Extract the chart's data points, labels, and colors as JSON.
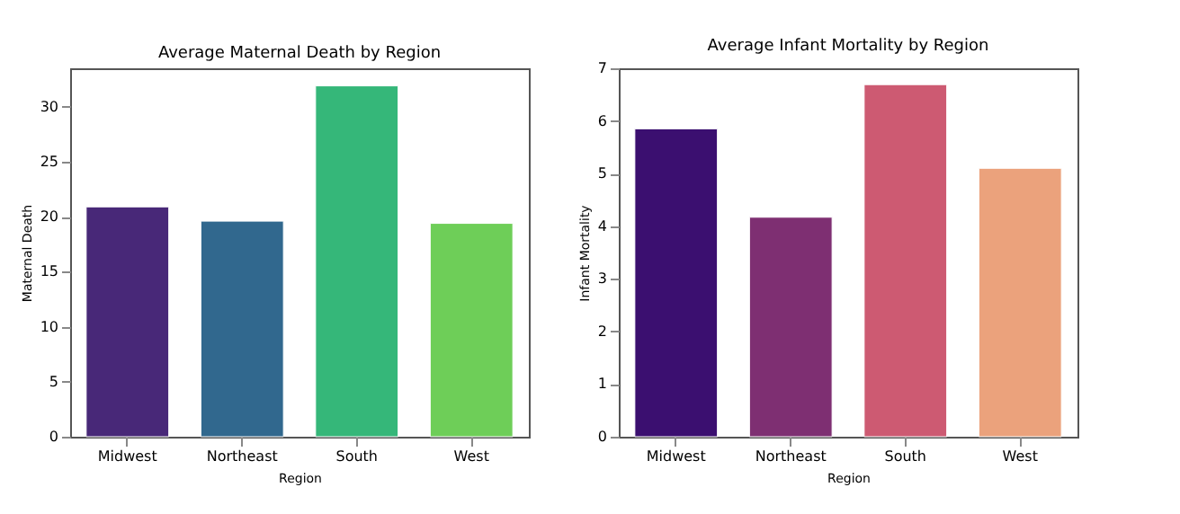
{
  "chart_data": [
    {
      "type": "bar",
      "title": "Average Maternal Death by Region",
      "xlabel": "Region",
      "ylabel": "Maternal Death",
      "categories": [
        "Midwest",
        "Northeast",
        "South",
        "West"
      ],
      "values": [
        20.9,
        19.6,
        31.9,
        19.4
      ],
      "colors": [
        "#482878",
        "#31688e",
        "#35b779",
        "#6ece58"
      ],
      "ylim": [
        0,
        33.5
      ],
      "yticks": [
        0,
        5,
        10,
        15,
        20,
        25,
        30
      ],
      "grid": false
    },
    {
      "type": "bar",
      "title": "Average Infant Mortality by Region",
      "xlabel": "Region",
      "ylabel": "Infant Mortality",
      "categories": [
        "Midwest",
        "Northeast",
        "South",
        "West"
      ],
      "values": [
        5.85,
        4.17,
        6.69,
        5.1
      ],
      "colors": [
        "#3b0f70",
        "#7e2f72",
        "#cd5a72",
        "#eba27c"
      ],
      "ylim": [
        0,
        7
      ],
      "yticks": [
        0,
        1,
        2,
        3,
        4,
        5,
        6,
        7
      ],
      "grid": false
    }
  ]
}
